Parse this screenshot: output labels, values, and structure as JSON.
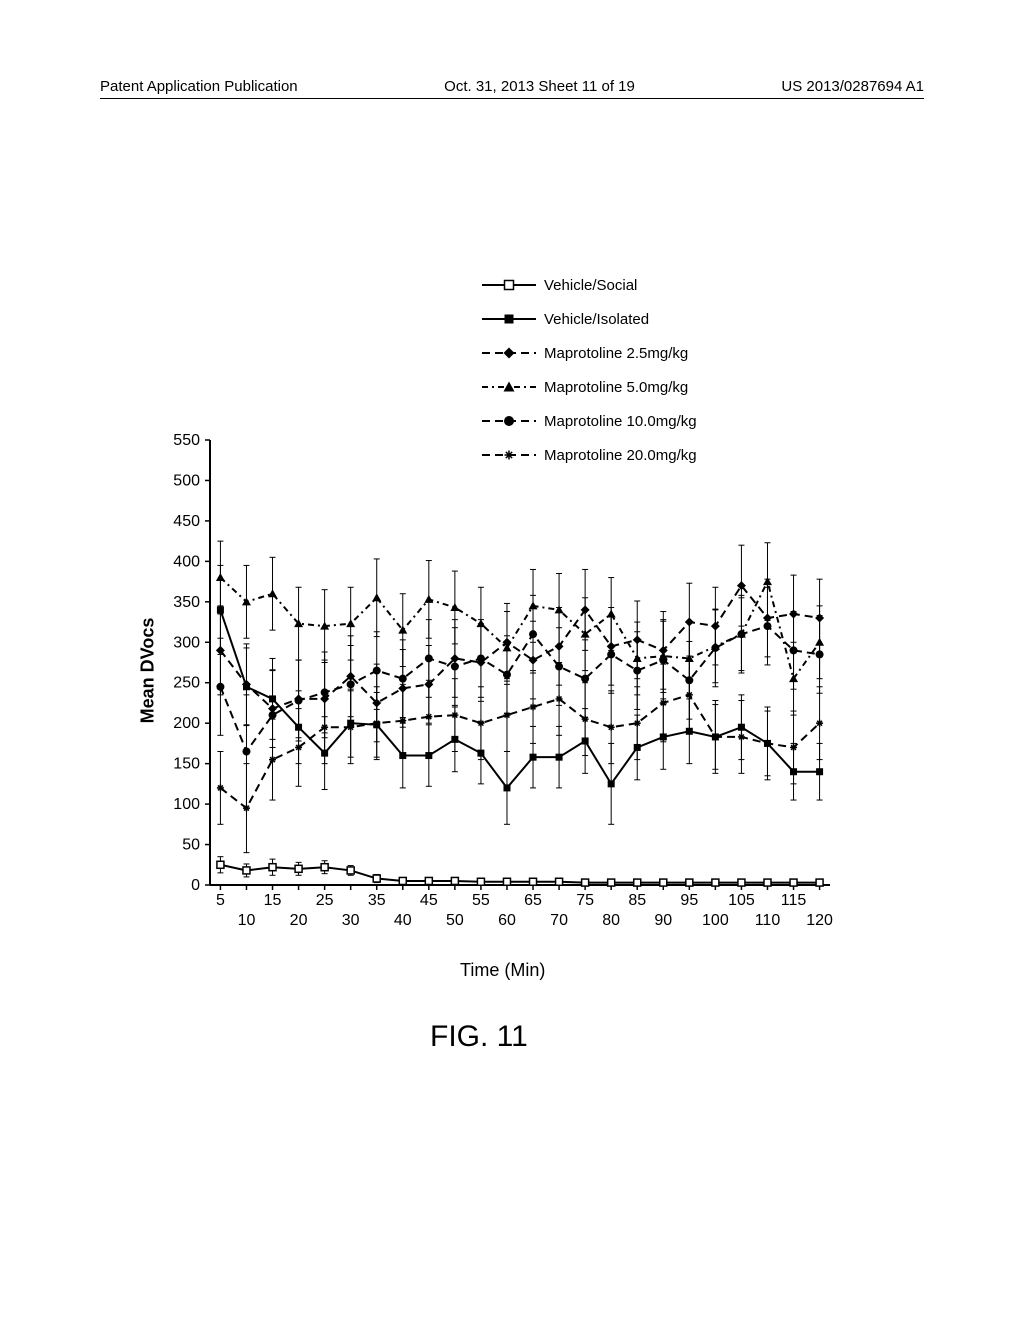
{
  "header": {
    "left": "Patent Application Publication",
    "center": "Oct. 31, 2013  Sheet 11 of 19",
    "right": "US 2013/0287694 A1"
  },
  "legend": {
    "items": [
      {
        "label": "Vehicle/Social",
        "marker": "open-square",
        "dash": "solid"
      },
      {
        "label": "Vehicle/Isolated",
        "marker": "filled-square",
        "dash": "solid"
      },
      {
        "label": "Maprotoline 2.5mg/kg",
        "marker": "filled-diamond",
        "dash": "dash"
      },
      {
        "label": "Maprotoline 5.0mg/kg",
        "marker": "filled-triangle",
        "dash": "dash-dot"
      },
      {
        "label": "Maprotoline 10.0mg/kg",
        "marker": "filled-circle",
        "dash": "dash"
      },
      {
        "label": "Maprotoline 20.0mg/kg",
        "marker": "asterisk",
        "dash": "dash"
      }
    ]
  },
  "chart": {
    "type": "line-errorbar",
    "ylabel": "Mean DVocs",
    "xlabel": "Time (Min)",
    "ylim": [
      0,
      550
    ],
    "ytick_step": 50,
    "yticks": [
      0,
      50,
      100,
      150,
      200,
      250,
      300,
      350,
      400,
      450,
      500,
      550
    ],
    "xlim": [
      0,
      120
    ],
    "xticks": [
      5,
      10,
      15,
      20,
      25,
      30,
      35,
      40,
      45,
      50,
      55,
      60,
      65,
      70,
      75,
      80,
      85,
      90,
      95,
      100,
      105,
      110,
      115,
      120
    ],
    "background_color": "#ffffff",
    "axis_color": "#000000",
    "line_color": "#000000",
    "line_width": 2,
    "marker_size": 7,
    "ylabel_fontsize": 18,
    "xlabel_fontsize": 18,
    "tick_fontsize": 16,
    "series": [
      {
        "name": "Vehicle/Social",
        "marker": "open-square",
        "dash": "solid",
        "x": [
          5,
          10,
          15,
          20,
          25,
          30,
          35,
          40,
          45,
          50,
          55,
          60,
          65,
          70,
          75,
          80,
          85,
          90,
          95,
          100,
          105,
          110,
          115,
          120
        ],
        "y": [
          25,
          18,
          22,
          20,
          22,
          18,
          8,
          5,
          5,
          5,
          4,
          4,
          4,
          4,
          3,
          3,
          3,
          3,
          3,
          3,
          3,
          3,
          3,
          3
        ],
        "err": [
          10,
          8,
          10,
          8,
          8,
          6,
          5,
          4,
          4,
          4,
          3,
          3,
          3,
          3,
          3,
          3,
          3,
          3,
          3,
          3,
          3,
          3,
          3,
          3
        ]
      },
      {
        "name": "Vehicle/Isolated",
        "marker": "filled-square",
        "dash": "solid",
        "x": [
          5,
          10,
          15,
          20,
          25,
          30,
          35,
          40,
          45,
          50,
          55,
          60,
          65,
          70,
          75,
          80,
          85,
          90,
          95,
          100,
          105,
          110,
          115,
          120
        ],
        "y": [
          340,
          245,
          230,
          195,
          163,
          200,
          198,
          160,
          160,
          180,
          163,
          120,
          158,
          158,
          178,
          125,
          170,
          183,
          190,
          183,
          195,
          175,
          140,
          140
        ],
        "err": [
          55,
          48,
          50,
          45,
          45,
          42,
          40,
          40,
          38,
          40,
          38,
          45,
          38,
          38,
          40,
          50,
          40,
          40,
          40,
          40,
          40,
          40,
          35,
          35
        ]
      },
      {
        "name": "Maprotoline 2.5mg/kg",
        "marker": "filled-diamond",
        "dash": "dash",
        "x": [
          5,
          10,
          15,
          20,
          25,
          30,
          35,
          40,
          45,
          50,
          55,
          60,
          65,
          70,
          75,
          80,
          85,
          90,
          95,
          100,
          105,
          110,
          115,
          120
        ],
        "y": [
          290,
          248,
          218,
          230,
          230,
          258,
          225,
          243,
          248,
          280,
          275,
          300,
          278,
          295,
          340,
          295,
          303,
          290,
          325,
          320,
          370,
          330,
          335,
          330
        ],
        "err": [
          55,
          50,
          48,
          48,
          48,
          50,
          48,
          48,
          48,
          48,
          48,
          48,
          48,
          48,
          50,
          48,
          48,
          48,
          48,
          48,
          50,
          48,
          48,
          48
        ]
      },
      {
        "name": "Maprotoline 5.0mg/kg",
        "marker": "filled-triangle",
        "dash": "dash-dot",
        "x": [
          5,
          10,
          15,
          20,
          25,
          30,
          35,
          40,
          45,
          50,
          55,
          60,
          65,
          70,
          75,
          80,
          85,
          90,
          95,
          100,
          105,
          110,
          115,
          120
        ],
        "y": [
          380,
          350,
          360,
          323,
          320,
          323,
          355,
          315,
          353,
          343,
          323,
          293,
          345,
          340,
          310,
          335,
          280,
          283,
          280,
          295,
          310,
          375,
          255,
          300
        ],
        "err": [
          45,
          45,
          45,
          45,
          45,
          45,
          48,
          45,
          48,
          45,
          45,
          45,
          45,
          45,
          45,
          45,
          45,
          45,
          45,
          45,
          45,
          48,
          45,
          45
        ]
      },
      {
        "name": "Maprotoline 10.0mg/kg",
        "marker": "filled-circle",
        "dash": "dash",
        "x": [
          5,
          10,
          15,
          20,
          25,
          30,
          35,
          40,
          45,
          50,
          55,
          60,
          65,
          70,
          75,
          80,
          85,
          90,
          95,
          100,
          105,
          110,
          115,
          120
        ],
        "y": [
          245,
          165,
          210,
          228,
          238,
          248,
          265,
          255,
          280,
          270,
          280,
          260,
          310,
          270,
          255,
          285,
          265,
          278,
          253,
          293,
          310,
          320,
          290,
          285
        ],
        "err": [
          60,
          70,
          55,
          50,
          50,
          48,
          48,
          48,
          48,
          48,
          48,
          48,
          48,
          48,
          48,
          48,
          48,
          48,
          48,
          48,
          48,
          48,
          48,
          48
        ]
      },
      {
        "name": "Maprotoline 20.0mg/kg",
        "marker": "asterisk",
        "dash": "dash",
        "x": [
          5,
          10,
          15,
          20,
          25,
          30,
          35,
          40,
          45,
          50,
          55,
          60,
          65,
          70,
          75,
          80,
          85,
          90,
          95,
          100,
          105,
          110,
          115,
          120
        ],
        "y": [
          120,
          95,
          155,
          170,
          195,
          195,
          200,
          203,
          208,
          210,
          200,
          210,
          220,
          230,
          205,
          195,
          200,
          225,
          235,
          183,
          183,
          175,
          170,
          200
        ],
        "err": [
          45,
          55,
          50,
          48,
          45,
          45,
          45,
          45,
          45,
          45,
          45,
          45,
          45,
          45,
          45,
          45,
          45,
          48,
          48,
          45,
          45,
          45,
          45,
          45
        ]
      }
    ]
  },
  "figure_caption": "FIG. 11"
}
